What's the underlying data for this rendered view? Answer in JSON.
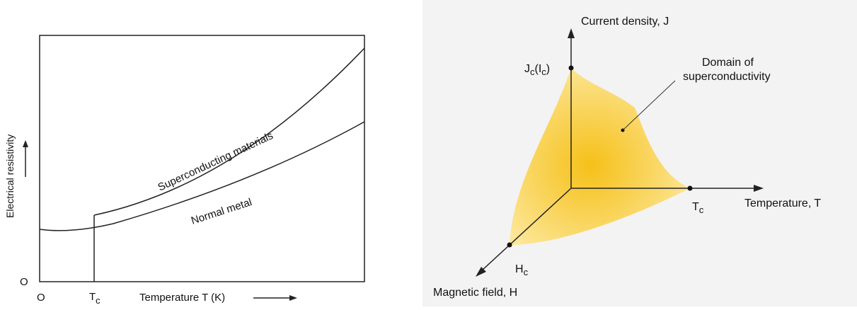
{
  "left_chart": {
    "origin_x": "O",
    "origin_y": "O",
    "tc_label": "T",
    "tc_sub": "c",
    "x_axis_label": "Temperature T (K)",
    "y_axis_label": "Electrical resistivity",
    "curve_superconducting": "Superconducting materials",
    "curve_normal": "Normal metal"
  },
  "right_diagram": {
    "axis_j": "Current density, J",
    "axis_t": "Temperature, T",
    "axis_h": "Magnetic field, H",
    "jc_main": "J",
    "jc_sub1": "c",
    "jc_mid": "(I",
    "jc_sub2": "c",
    "jc_end": ")",
    "tc_main": "T",
    "tc_sub": "c",
    "hc_main": "H",
    "hc_sub": "c",
    "domain_line1": "Domain of",
    "domain_line2": "superconductivity",
    "fill_center_color": "#f5c018",
    "fill_edge_color": "#fde79a"
  }
}
